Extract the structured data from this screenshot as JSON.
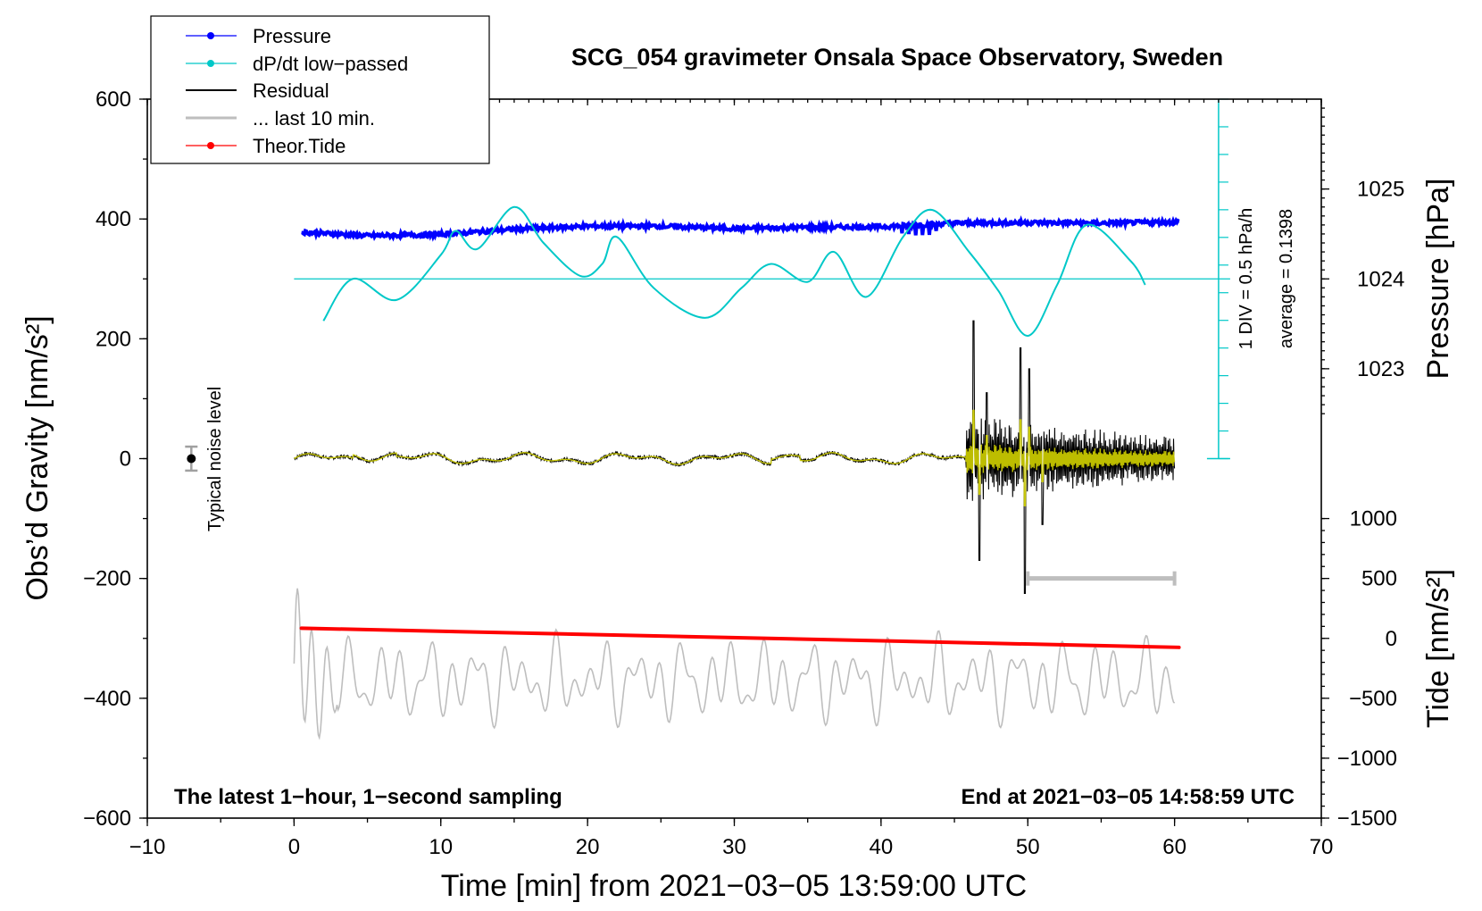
{
  "chart_data": {
    "type": "line",
    "title": "SCG_054 gravimeter Onsala Space Observatory, Sweden",
    "xlabel": "Time [min] from 2021−03−05 13:59:00 UTC",
    "ylabel_left": "Obs’d Gravity [nm/s²]",
    "ylabel_pressure": "Pressure [hPa]",
    "ylabel_tide": "Tide [nm/s²]",
    "xlim": [
      -10,
      70
    ],
    "ylim": [
      -600,
      600
    ],
    "x_ticks": [
      -10,
      0,
      10,
      20,
      30,
      40,
      50,
      60,
      70
    ],
    "x_tick_labels": [
      "−10",
      "0",
      "10",
      "20",
      "30",
      "40",
      "50",
      "60",
      "70"
    ],
    "y_ticks": [
      -600,
      -400,
      -200,
      0,
      200,
      400,
      600
    ],
    "y_tick_labels": [
      "−600",
      "−400",
      "−200",
      "0",
      "200",
      "400",
      "600"
    ],
    "pressure_axis": {
      "ticks": [
        1023,
        1024,
        1025
      ],
      "tick_labels": [
        "1023",
        "1024",
        "1025"
      ],
      "mapping_note": "1024 hPa at gravity 300, 1025 hPa at 450"
    },
    "tide_axis": {
      "ticks": [
        -1500,
        -1000,
        -500,
        0,
        500,
        1000
      ],
      "tick_labels": [
        "−1500",
        "−1000",
        "−500",
        "0",
        "500",
        "1000"
      ],
      "mapping_note": "0 nm/s2 at gravity -300, 1000 at -100"
    },
    "dpdt_scale": {
      "label": "1 DIV = 0.5 hPa/h",
      "average_label": "average = 0.1398",
      "baseline_gravity": 300,
      "divisions": 13
    },
    "legend": [
      {
        "label": "Pressure",
        "color": "#0000ff",
        "marker": "dot"
      },
      {
        "label": "dP/dt low−passed",
        "color": "#00c8c8",
        "marker": "dot"
      },
      {
        "label": "Residual",
        "color": "#000000",
        "marker": "none"
      },
      {
        "label": "... last 10 min.",
        "color": "#bebebe",
        "marker": "none"
      },
      {
        "label": "Theor.Tide",
        "color": "#ff0000",
        "marker": "dot"
      }
    ],
    "noise_level": {
      "label": "Typical noise level",
      "x": -7,
      "value": 0,
      "error": 20
    },
    "last10_bar": {
      "x_start": 50,
      "x_end": 60,
      "y": -200
    },
    "series": [
      {
        "name": "Pressure",
        "color": "#0000ff",
        "x": [
          0.5,
          5,
          10,
          15,
          20,
          25,
          30,
          35,
          40,
          45,
          50,
          55,
          60.3
        ],
        "y": [
          378,
          372,
          374,
          383,
          388,
          388,
          384,
          386,
          387,
          393,
          394,
          393,
          395
        ]
      },
      {
        "name": "dP/dt low-passed",
        "color": "#00c8c8",
        "x": [
          2,
          4,
          7,
          10,
          11,
          12.5,
          15,
          17,
          19.5,
          21,
          22,
          24.5,
          28,
          30.5,
          32.5,
          35,
          36.8,
          39,
          41.5,
          43.5,
          46,
          48,
          50,
          52,
          54,
          57,
          58
        ],
        "y": [
          230,
          300,
          265,
          340,
          380,
          350,
          420,
          360,
          305,
          325,
          370,
          285,
          235,
          285,
          325,
          295,
          345,
          270,
          370,
          415,
          345,
          280,
          205,
          290,
          390,
          330,
          290
        ]
      },
      {
        "name": "Residual",
        "color": "#000000",
        "x": [
          0,
          1,
          2,
          3,
          5,
          8,
          10,
          15,
          20,
          25,
          30,
          33,
          36,
          40,
          44,
          45.5,
          46,
          46.3,
          46.6,
          47,
          48,
          49,
          49.5,
          50,
          50.5,
          52,
          54,
          56,
          58,
          60
        ],
        "y": [
          0,
          -5,
          -10,
          -3,
          8,
          -2,
          -3,
          0,
          1,
          -2,
          1,
          10,
          -2,
          3,
          -4,
          0,
          230,
          -170,
          120,
          -90,
          100,
          -140,
          190,
          -230,
          130,
          110,
          70,
          95,
          75,
          10
        ]
      },
      {
        "name": "Theor.Tide",
        "color": "#ff0000",
        "x": [
          0.5,
          60.3
        ],
        "y": [
          0,
          -165
        ]
      }
    ],
    "annotations": [
      "The latest 1−hour, 1−second sampling",
      "End at 2021−03−05 14:58:59 UTC"
    ]
  }
}
